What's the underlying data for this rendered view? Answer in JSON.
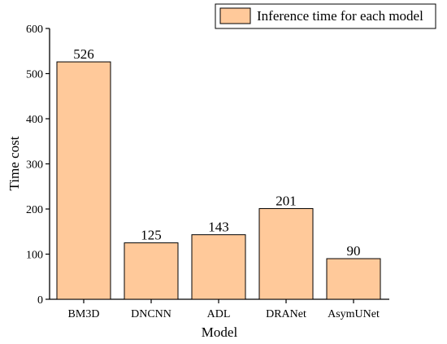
{
  "chart_data": {
    "type": "bar",
    "categories": [
      "BM3D",
      "DNCNN",
      "ADL",
      "DRANet",
      "AsymUNet"
    ],
    "values": [
      526,
      125,
      143,
      201,
      90
    ],
    "data_labels": [
      "526",
      "125",
      "143",
      "201",
      "90"
    ],
    "xlabel": "Model",
    "ylabel": "Time cost",
    "ylim": [
      0,
      600
    ],
    "yticks": [
      0,
      100,
      200,
      300,
      400,
      500,
      600
    ],
    "ytick_labels": [
      "0",
      "100",
      "200",
      "300",
      "400",
      "500",
      "600"
    ],
    "legend": {
      "entries": [
        "Inference time for each model"
      ],
      "placement": "top-right"
    },
    "grid": false,
    "colors": {
      "bar_fill": "#FFC99A",
      "bar_stroke": "#000000"
    }
  }
}
